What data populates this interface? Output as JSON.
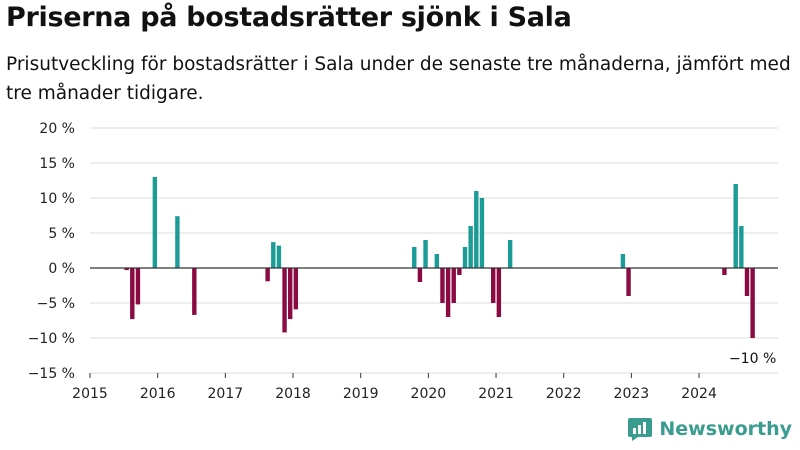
{
  "title": "Priserna på bostadsrätter sjönk i Sala",
  "subtitle": "Prisutveckling för bostadsrätter i Sala under de senaste tre månaderna, jämfört med tre månader tidigare.",
  "brand": "Newsworthy",
  "colors": {
    "positive": "#1b9c96",
    "negative": "#8b0a43",
    "grid": "#dddddd",
    "zero": "#333333"
  },
  "chart_data": {
    "type": "bar",
    "title": "Priserna på bostadsrätter sjönk i Sala",
    "xlabel": "",
    "ylabel": "",
    "ylim": [
      -15,
      20
    ],
    "xlim": [
      "2015-01",
      "2025-03"
    ],
    "y_ticks": [
      20,
      15,
      10,
      5,
      0,
      -5,
      -10,
      -15
    ],
    "y_tick_labels": [
      "20 %",
      "15 %",
      "10 %",
      "5 %",
      "0 %",
      "−5 %",
      "−10 %",
      "−15 %"
    ],
    "x_ticks": [
      "2015",
      "2016",
      "2017",
      "2018",
      "2019",
      "2020",
      "2021",
      "2022",
      "2023",
      "2024"
    ],
    "grid": true,
    "annotation": {
      "text": "−10 %",
      "date": "2024-10"
    },
    "points": [
      {
        "date": "2015-07",
        "value": -0.3
      },
      {
        "date": "2015-08",
        "value": -7.3
      },
      {
        "date": "2015-09",
        "value": -5.2
      },
      {
        "date": "2015-12",
        "value": 13.0
      },
      {
        "date": "2016-04",
        "value": 7.4
      },
      {
        "date": "2016-07",
        "value": -6.7
      },
      {
        "date": "2017-08",
        "value": -1.9
      },
      {
        "date": "2017-09",
        "value": 3.7
      },
      {
        "date": "2017-10",
        "value": 3.2
      },
      {
        "date": "2017-11",
        "value": -9.2
      },
      {
        "date": "2017-12",
        "value": -7.3
      },
      {
        "date": "2018-01",
        "value": -5.9
      },
      {
        "date": "2019-10",
        "value": 3.0
      },
      {
        "date": "2019-11",
        "value": -2.0
      },
      {
        "date": "2019-12",
        "value": 4.0
      },
      {
        "date": "2020-02",
        "value": 2.0
      },
      {
        "date": "2020-03",
        "value": -5.0
      },
      {
        "date": "2020-04",
        "value": -7.0
      },
      {
        "date": "2020-05",
        "value": -5.0
      },
      {
        "date": "2020-06",
        "value": -1.0
      },
      {
        "date": "2020-07",
        "value": 3.0
      },
      {
        "date": "2020-08",
        "value": 6.0
      },
      {
        "date": "2020-09",
        "value": 11.0
      },
      {
        "date": "2020-10",
        "value": 10.0
      },
      {
        "date": "2020-12",
        "value": -5.0
      },
      {
        "date": "2021-01",
        "value": -7.0
      },
      {
        "date": "2021-03",
        "value": 4.0
      },
      {
        "date": "2022-11",
        "value": 2.0
      },
      {
        "date": "2022-12",
        "value": -4.0
      },
      {
        "date": "2024-05",
        "value": -1.0
      },
      {
        "date": "2024-07",
        "value": 12.0
      },
      {
        "date": "2024-08",
        "value": 6.0
      },
      {
        "date": "2024-09",
        "value": -4.0
      },
      {
        "date": "2024-10",
        "value": -10.0
      }
    ]
  }
}
